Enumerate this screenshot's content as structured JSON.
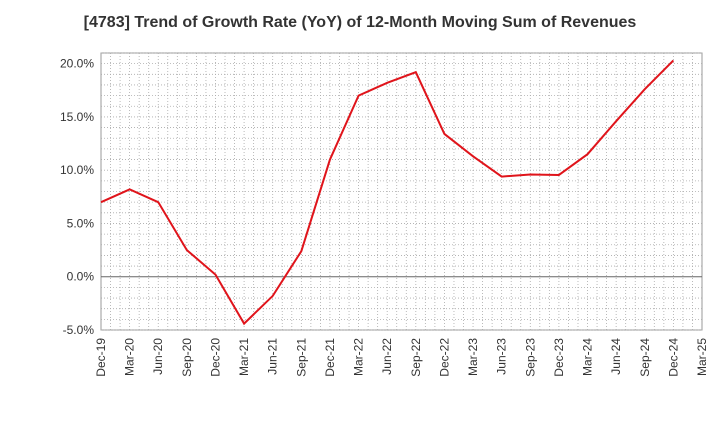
{
  "chart_data": {
    "type": "line",
    "title": "[4783]  Trend of Growth Rate (YoY) of 12-Month Moving Sum of Revenues",
    "xlabel": "",
    "ylabel": "",
    "ylim": [
      -5.0,
      21.0
    ],
    "yticks": [
      "20.0%",
      "15.0%",
      "10.0%",
      "5.0%",
      "0.0%",
      "-5.0%"
    ],
    "ytick_values": [
      20.0,
      15.0,
      10.0,
      5.0,
      0.0,
      -5.0
    ],
    "xticks": [
      "Dec-19",
      "Mar-20",
      "Jun-20",
      "Sep-20",
      "Dec-20",
      "Mar-21",
      "Jun-21",
      "Sep-21",
      "Dec-21",
      "Mar-22",
      "Jun-22",
      "Sep-22",
      "Dec-22",
      "Mar-23",
      "Jun-23",
      "Sep-23",
      "Dec-23",
      "Mar-24",
      "Jun-24",
      "Sep-24",
      "Dec-24",
      "Mar-25"
    ],
    "grid": true,
    "line_color": "#e0141b",
    "series": [
      {
        "name": "",
        "x": [
          "Dec-19",
          "Mar-20",
          "Jun-20",
          "Sep-20",
          "Dec-20",
          "Mar-21",
          "Jun-21",
          "Sep-21",
          "Dec-21",
          "Mar-22",
          "Jun-22",
          "Sep-22",
          "Dec-22",
          "Mar-23",
          "Jun-23",
          "Sep-23",
          "Dec-23",
          "Mar-24",
          "Jun-24",
          "Sep-24",
          "Dec-24"
        ],
        "values": [
          7.0,
          8.2,
          7.0,
          2.5,
          0.2,
          -4.4,
          -1.8,
          2.4,
          11.0,
          17.0,
          18.2,
          19.2,
          13.4,
          11.3,
          9.4,
          9.6,
          9.55,
          11.5,
          14.6,
          17.6,
          20.3
        ]
      }
    ]
  }
}
